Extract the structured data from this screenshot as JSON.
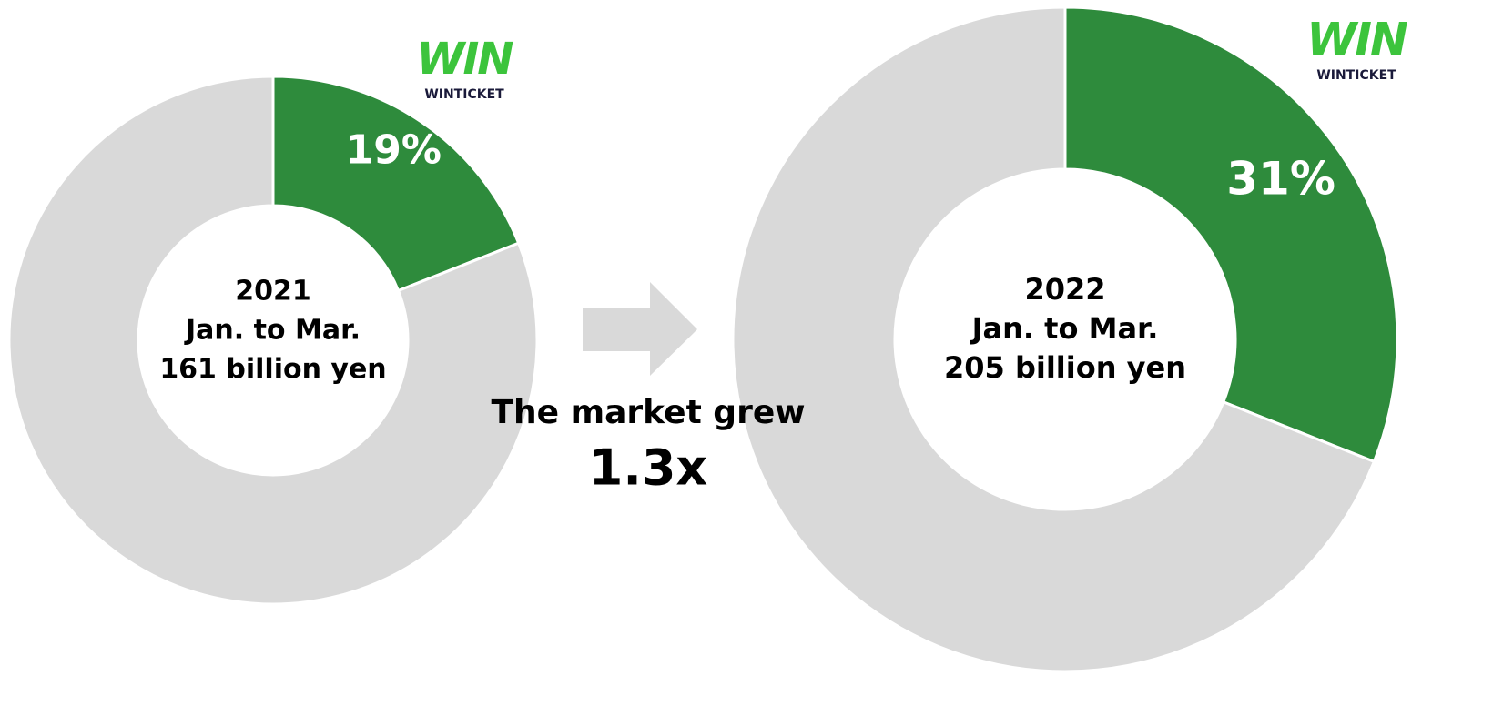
{
  "chart_data": [
    {
      "type": "pie",
      "donut": true,
      "center_text": [
        "2021",
        "Jan. to Mar.",
        "161 billion yen"
      ],
      "categories": [
        null,
        null
      ],
      "values": [
        19,
        81
      ],
      "value_labels": [
        "19%",
        null
      ],
      "colors": [
        "#2e8b3c",
        "#d9d9d9"
      ],
      "logo": {
        "mark": "WIN",
        "name": "WINTICKET"
      }
    },
    {
      "type": "pie",
      "donut": true,
      "center_text": [
        "2022",
        "Jan. to Mar.",
        "205 billion yen"
      ],
      "categories": [
        null,
        null
      ],
      "values": [
        31,
        69
      ],
      "value_labels": [
        "31%",
        null
      ],
      "colors": [
        "#2e8b3c",
        "#d9d9d9"
      ],
      "logo": {
        "mark": "WIN",
        "name": "WINTICKET"
      }
    }
  ],
  "annotation": {
    "text": "The market grew",
    "factor": "1.3x"
  }
}
